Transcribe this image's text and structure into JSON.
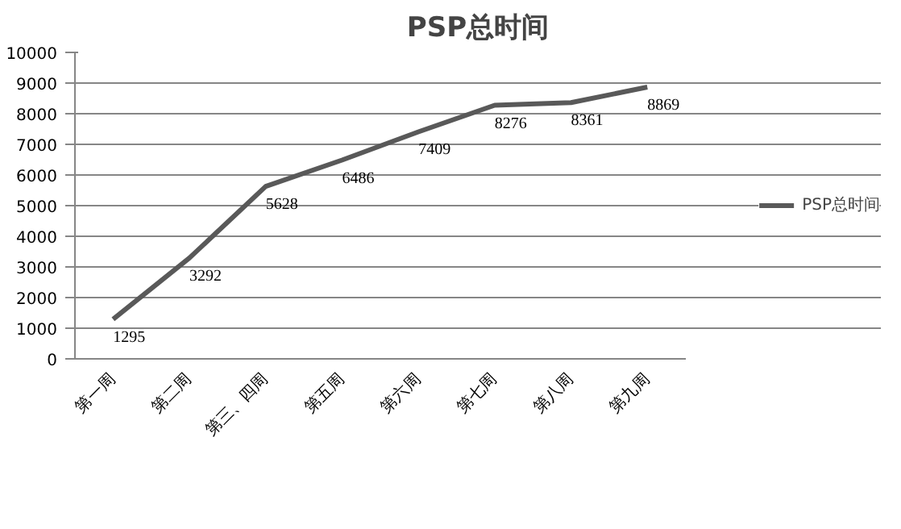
{
  "chart_data": {
    "type": "line",
    "title": "PSP总时间",
    "categories": [
      "第一周",
      "第二周",
      "第三、四周",
      "第五周",
      "第六周",
      "第七周",
      "第八周",
      "第九周"
    ],
    "series": [
      {
        "name": "PSP总时间",
        "color": "#595959",
        "values": [
          1295,
          3292,
          5628,
          6486,
          7409,
          8276,
          8361,
          8869
        ]
      }
    ],
    "ylim": [
      0,
      10000
    ],
    "yticks": [
      0,
      1000,
      2000,
      3000,
      4000,
      5000,
      6000,
      7000,
      8000,
      9000,
      10000
    ],
    "grid": "y",
    "legend": "right",
    "data_labels": true,
    "marker": "none",
    "line_style": "solid"
  }
}
